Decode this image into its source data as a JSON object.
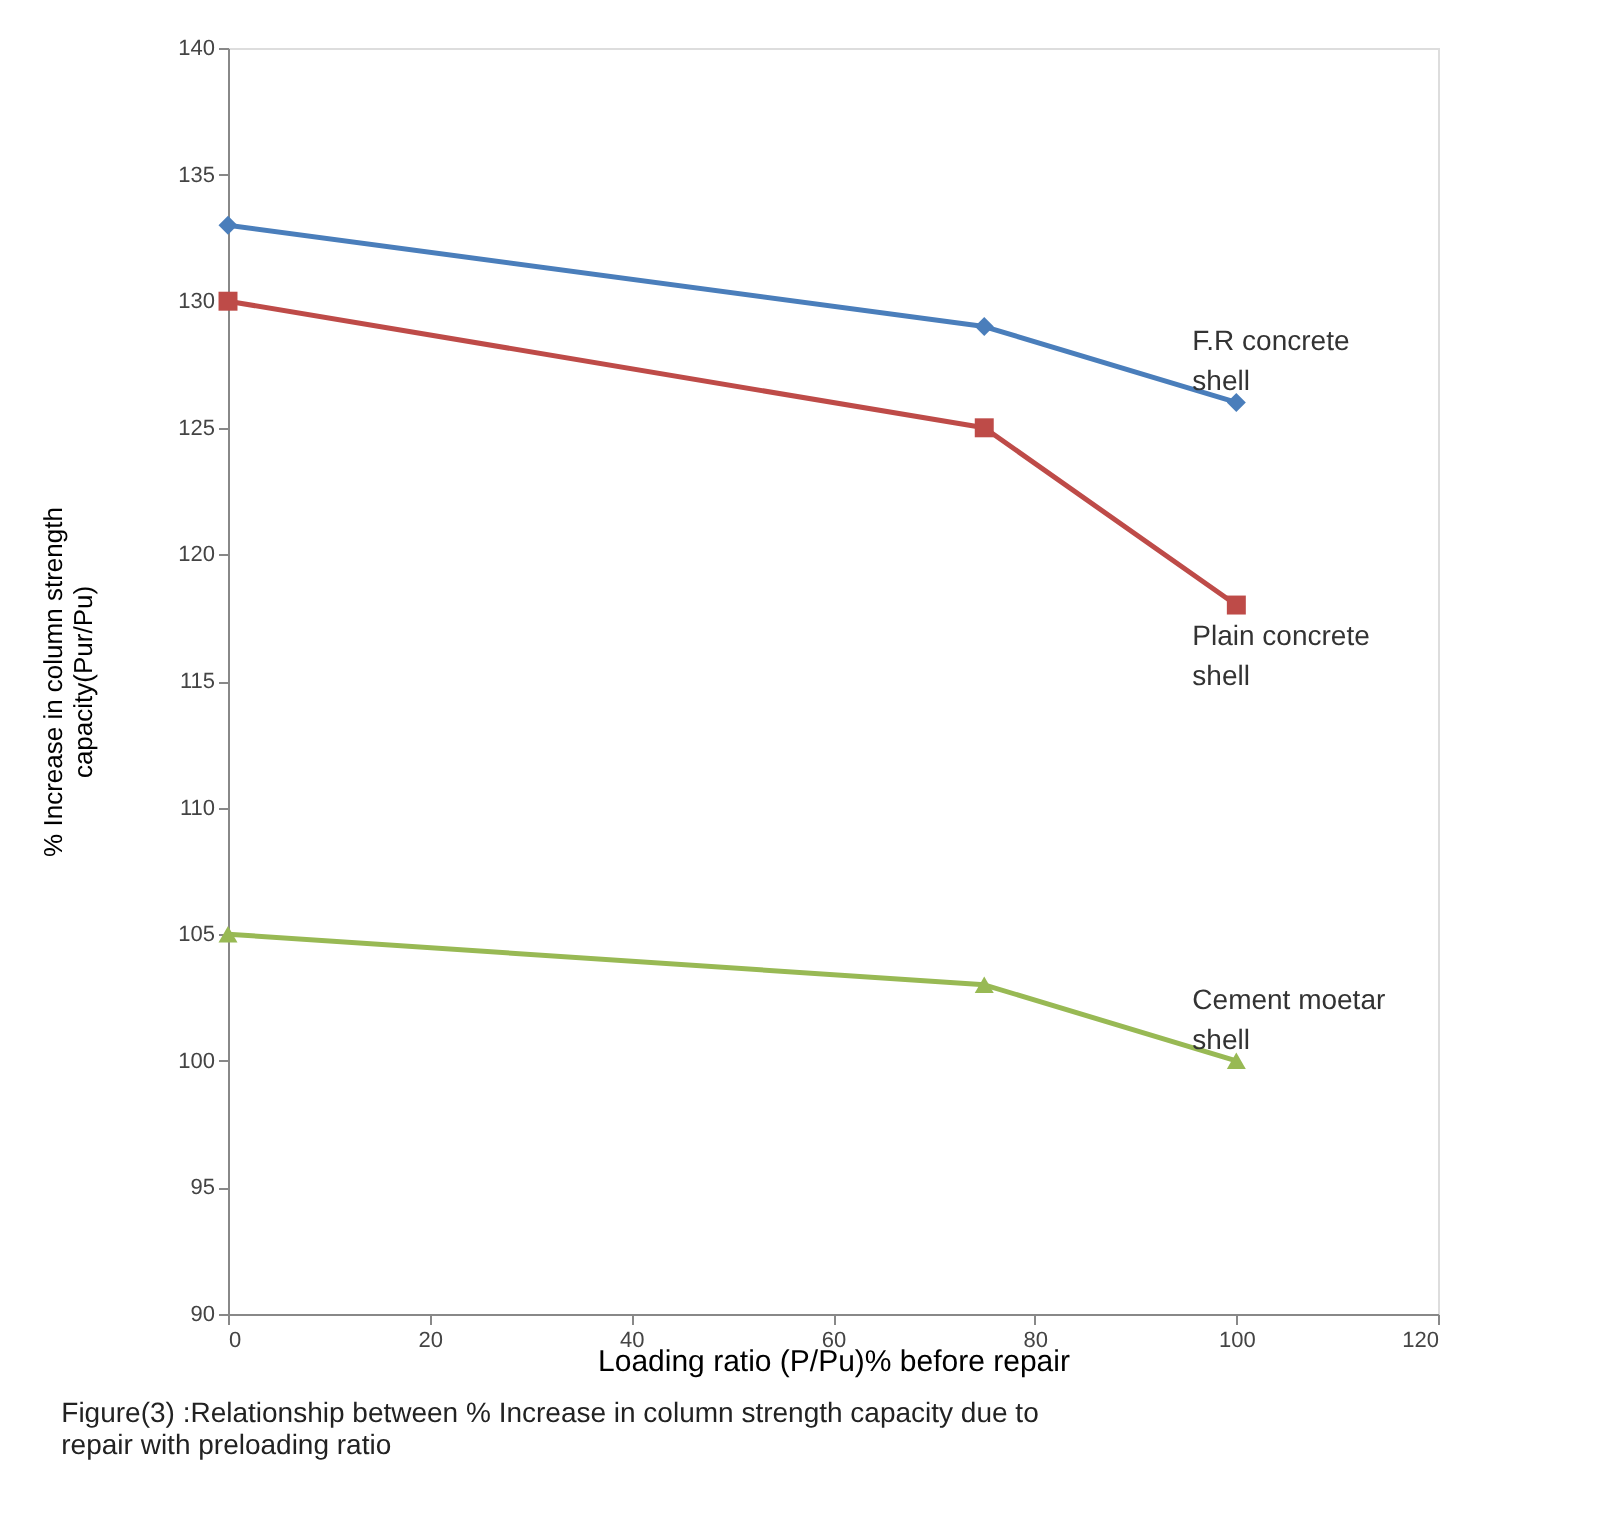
{
  "chart_data": {
    "type": "line",
    "xlabel": "Loading ratio (P/Pu)% before repair",
    "ylabel": "% Increase in column strength capacity(Pur/Pu)",
    "x": [
      0,
      75,
      100
    ],
    "series": [
      {
        "name": "F.R concrete shell",
        "color": "#4a7ebb",
        "marker": "diamond",
        "values": [
          133,
          129,
          126
        ]
      },
      {
        "name": "Plain concrete shell",
        "color": "#be4b48",
        "marker": "square",
        "values": [
          130,
          125,
          118
        ]
      },
      {
        "name": "Cement moetar shell",
        "color": "#98b954",
        "marker": "triangle",
        "values": [
          105,
          103,
          100
        ]
      }
    ],
    "xlim": [
      0,
      120
    ],
    "xticks": [
      0,
      20,
      40,
      60,
      80,
      100,
      120
    ],
    "ylim": [
      90,
      140
    ],
    "yticks": [
      90,
      95,
      100,
      105,
      110,
      115,
      120,
      125,
      130,
      135,
      140
    ],
    "grid": false,
    "annotations": [
      "Figure(3) :Relationship between % Increase in column strength capacity due to repair with preloading ratio"
    ]
  }
}
